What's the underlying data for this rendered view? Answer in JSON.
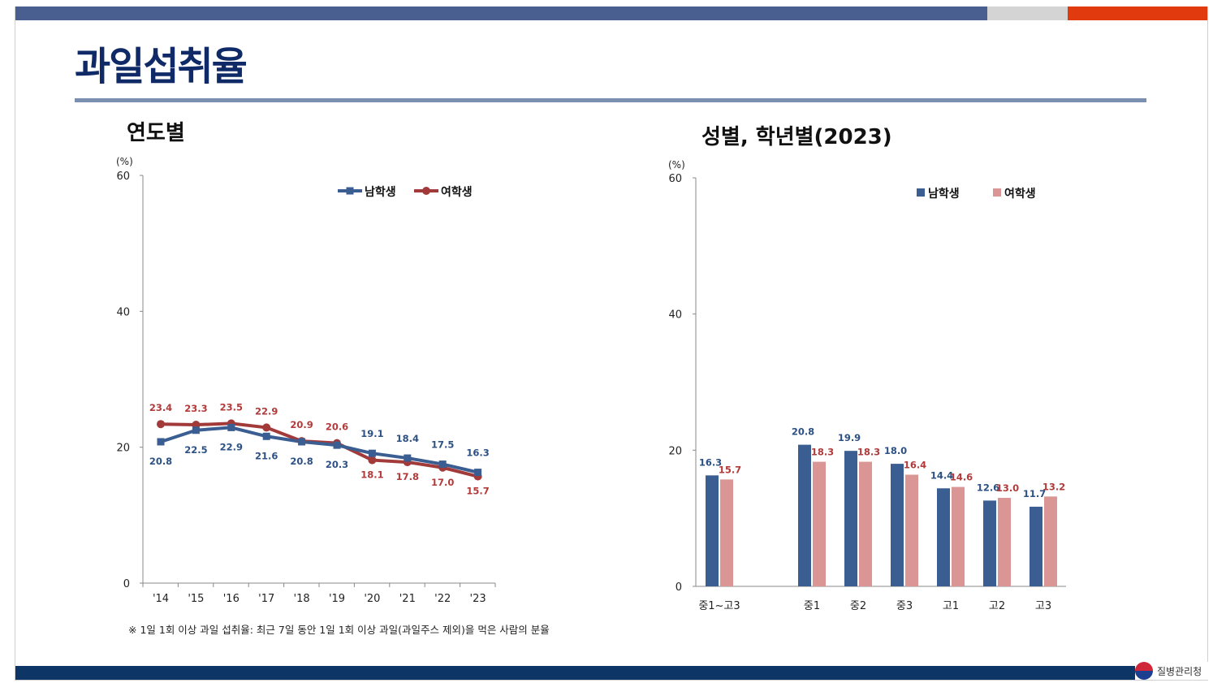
{
  "header": {
    "title": "과일섭취율"
  },
  "left_panel": {
    "subtitle": "연도별"
  },
  "right_panel": {
    "subtitle": "성별, 학년별(2023)"
  },
  "footnote": "※ 1일 1회 이상 과일 섭취율: 최근 7일 동안 1일 1회 이상 과일(과일주스 제외)을 먹은 사람의 분율",
  "logo": {
    "text": "질병관리청",
    "icon": "taegeuk-icon"
  },
  "colors": {
    "male": "#3a5d92",
    "female_line": "#a33a3a",
    "female_bar": "#d99694",
    "female_label": "#b23a3a",
    "male_label": "#2d5184",
    "title": "#0f2a66"
  },
  "chart_data": [
    {
      "type": "line",
      "unit_label": "(%)",
      "x": [
        "'14",
        "'15",
        "'16",
        "'17",
        "'18",
        "'19",
        "'20",
        "'21",
        "'22",
        "'23"
      ],
      "ylim": [
        0,
        60
      ],
      "yticks": [
        0,
        20,
        40,
        60
      ],
      "legend_position": "top-right",
      "series": [
        {
          "name": "남학생",
          "values": [
            20.8,
            22.5,
            22.9,
            21.6,
            20.8,
            20.3,
            19.1,
            18.4,
            17.5,
            16.3
          ],
          "labels": [
            "20.8",
            "22.5",
            "22.9",
            "21.6",
            "20.8",
            "20.3",
            "19.1",
            "18.4",
            "17.5",
            "16.3"
          ]
        },
        {
          "name": "여학생",
          "values": [
            23.4,
            23.3,
            23.5,
            22.9,
            20.9,
            20.6,
            18.1,
            17.8,
            17.0,
            15.7
          ],
          "labels": [
            "23.4",
            "23.3",
            "23.5",
            "22.9",
            "20.9",
            "20.6",
            "18.1",
            "17.8",
            "17.0",
            "15.7"
          ]
        }
      ]
    },
    {
      "type": "bar",
      "unit_label": "(%)",
      "categories": [
        "중1~고3",
        "중1",
        "중2",
        "중3",
        "고1",
        "고2",
        "고3"
      ],
      "ylim": [
        0,
        60
      ],
      "yticks": [
        0,
        20,
        40,
        60
      ],
      "legend_position": "top-right",
      "series": [
        {
          "name": "남학생",
          "values": [
            16.3,
            20.8,
            19.9,
            18.0,
            14.4,
            12.6,
            11.7
          ],
          "labels": [
            "16.3",
            "20.8",
            "19.9",
            "18.0",
            "14.4",
            "12.6",
            "11.7"
          ]
        },
        {
          "name": "여학생",
          "values": [
            15.7,
            18.3,
            18.3,
            16.4,
            14.6,
            13.0,
            13.2
          ],
          "labels": [
            "15.7",
            "18.3",
            "18.3",
            "16.4",
            "14.6",
            "13.0",
            "13.2"
          ]
        }
      ]
    }
  ]
}
